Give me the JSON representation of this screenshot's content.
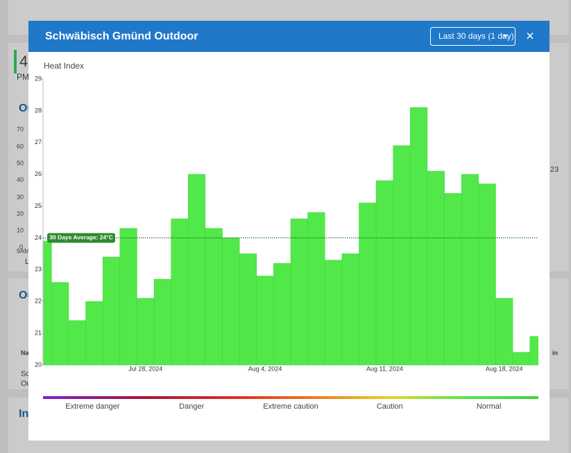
{
  "background": {
    "texts": [
      "4",
      "PM",
      "Ou",
      "70",
      "60",
      "50",
      "40",
      "30",
      "20",
      "10",
      "0",
      "9AM",
      "L",
      "Ou",
      "Na",
      "Sc",
      "Ou",
      "In",
      "23",
      "in"
    ]
  },
  "modal": {
    "title": "Schwäbisch Gmünd Outdoor",
    "range_button": "Last 30 days (1 day)",
    "close": "×"
  },
  "chart_data": {
    "type": "bar",
    "y_label": "Heat Index",
    "x": [
      "2024-07-22",
      "2024-07-23",
      "2024-07-24",
      "2024-07-25",
      "2024-07-26",
      "2024-07-27",
      "2024-07-28",
      "2024-07-29",
      "2024-07-30",
      "2024-07-31",
      "2024-08-01",
      "2024-08-02",
      "2024-08-03",
      "2024-08-04",
      "2024-08-05",
      "2024-08-06",
      "2024-08-07",
      "2024-08-08",
      "2024-08-09",
      "2024-08-10",
      "2024-08-11",
      "2024-08-12",
      "2024-08-13",
      "2024-08-14",
      "2024-08-15",
      "2024-08-16",
      "2024-08-17",
      "2024-08-18",
      "2024-08-19",
      "2024-08-20"
    ],
    "values": [
      23.9,
      22.6,
      21.4,
      22,
      23.4,
      24.3,
      22.1,
      22.7,
      24.6,
      26,
      24.3,
      24,
      23.5,
      22.8,
      23.2,
      24.6,
      24.8,
      23.3,
      23.5,
      25.1,
      25.8,
      26.9,
      28.1,
      26.1,
      25.4,
      26,
      25.7,
      22.1,
      20.4,
      20.9
    ],
    "color": "#52e84a",
    "xlim": [
      "2024-07-22",
      "2024-08-20"
    ],
    "xticks": [
      {
        "value": "2024-07-28",
        "label": "Jul 28, 2024"
      },
      {
        "value": "2024-08-04",
        "label": "Aug 4, 2024"
      },
      {
        "value": "2024-08-11",
        "label": "Aug 11, 2024"
      },
      {
        "value": "2024-08-18",
        "label": "Aug 18, 2024"
      }
    ],
    "ylim": [
      20,
      29
    ],
    "yticks": [
      20,
      21,
      22,
      23,
      24,
      25,
      26,
      27,
      28,
      29
    ],
    "average": {
      "value": 24,
      "label": "30 Days Average: 24°C"
    },
    "scale_labels": [
      "Extreme danger",
      "Danger",
      "Extreme caution",
      "Caution",
      "Normal"
    ]
  }
}
